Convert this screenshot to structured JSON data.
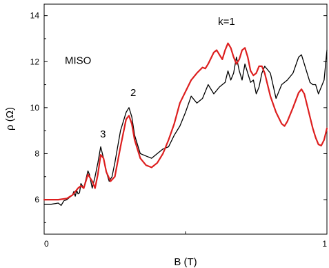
{
  "chart_data": {
    "type": "line",
    "xlabel": "B (T)",
    "ylabel": "ρ (Ω)",
    "xlim": [
      0,
      1
    ],
    "ylim": [
      4.5,
      14.5
    ],
    "x_ticks": [
      {
        "value": 0,
        "label": "0"
      },
      {
        "value": 1,
        "label": "1"
      }
    ],
    "y_ticks": [
      {
        "value": 6,
        "label": "6"
      },
      {
        "value": 8,
        "label": "8"
      },
      {
        "value": 10,
        "label": "10"
      },
      {
        "value": 12,
        "label": "12"
      },
      {
        "value": 14,
        "label": "14"
      }
    ],
    "grid": false,
    "series": [
      {
        "color": "#000000",
        "x": [
          0,
          0.025,
          0.05,
          0.06,
          0.07,
          0.08,
          0.09,
          0.1,
          0.105,
          0.11,
          0.115,
          0.12,
          0.125,
          0.13,
          0.14,
          0.15,
          0.155,
          0.16,
          0.17,
          0.18,
          0.19,
          0.2,
          0.21,
          0.22,
          0.23,
          0.24,
          0.25,
          0.27,
          0.29,
          0.3,
          0.31,
          0.32,
          0.34,
          0.36,
          0.38,
          0.4,
          0.42,
          0.44,
          0.46,
          0.48,
          0.5,
          0.52,
          0.54,
          0.56,
          0.58,
          0.6,
          0.62,
          0.64,
          0.65,
          0.66,
          0.67,
          0.68,
          0.69,
          0.7,
          0.71,
          0.72,
          0.73,
          0.74,
          0.75,
          0.76,
          0.77,
          0.78,
          0.8,
          0.82,
          0.84,
          0.86,
          0.88,
          0.9,
          0.91,
          0.92,
          0.93,
          0.94,
          0.95,
          0.96,
          0.97,
          0.98,
          0.99,
          1.0
        ],
        "y": [
          5.8,
          5.8,
          5.85,
          5.75,
          5.95,
          6.0,
          6.1,
          6.2,
          6.35,
          6.15,
          6.4,
          6.25,
          6.3,
          6.7,
          6.5,
          7.0,
          7.25,
          7.1,
          6.5,
          7.0,
          7.6,
          8.3,
          7.8,
          7.2,
          6.8,
          7.0,
          7.6,
          9.0,
          9.8,
          10.0,
          9.6,
          8.8,
          8.0,
          7.9,
          7.8,
          8.0,
          8.2,
          8.3,
          8.8,
          9.2,
          9.8,
          10.5,
          10.2,
          10.4,
          11.0,
          10.6,
          10.9,
          11.1,
          11.6,
          11.2,
          11.5,
          12.2,
          11.6,
          11.2,
          11.9,
          11.5,
          11.1,
          11.2,
          10.6,
          10.9,
          11.5,
          11.8,
          11.5,
          10.4,
          11.0,
          11.2,
          11.5,
          12.2,
          12.3,
          11.9,
          11.5,
          11.1,
          11.0,
          11.0,
          10.6,
          10.9,
          11.2,
          12.5
        ]
      },
      {
        "color": "#dd1f1f",
        "x": [
          0,
          0.025,
          0.05,
          0.08,
          0.1,
          0.12,
          0.13,
          0.14,
          0.155,
          0.17,
          0.18,
          0.19,
          0.2,
          0.21,
          0.22,
          0.235,
          0.25,
          0.27,
          0.29,
          0.3,
          0.31,
          0.32,
          0.34,
          0.36,
          0.38,
          0.4,
          0.42,
          0.44,
          0.46,
          0.48,
          0.5,
          0.52,
          0.54,
          0.56,
          0.57,
          0.58,
          0.6,
          0.61,
          0.62,
          0.63,
          0.64,
          0.65,
          0.66,
          0.67,
          0.68,
          0.69,
          0.7,
          0.71,
          0.72,
          0.73,
          0.74,
          0.75,
          0.76,
          0.77,
          0.78,
          0.79,
          0.8,
          0.82,
          0.84,
          0.85,
          0.86,
          0.88,
          0.9,
          0.91,
          0.92,
          0.93,
          0.94,
          0.95,
          0.96,
          0.97,
          0.98,
          0.99,
          1.0
        ],
        "y": [
          6.0,
          6.0,
          6.0,
          6.05,
          6.2,
          6.5,
          6.6,
          6.5,
          7.1,
          6.8,
          6.5,
          7.1,
          7.95,
          7.8,
          7.2,
          6.8,
          7.0,
          8.3,
          9.5,
          9.65,
          9.3,
          8.6,
          7.8,
          7.5,
          7.4,
          7.6,
          8.0,
          8.6,
          9.3,
          10.2,
          10.7,
          11.2,
          11.5,
          11.75,
          11.7,
          11.9,
          12.4,
          12.5,
          12.3,
          12.1,
          12.5,
          12.8,
          12.6,
          12.2,
          11.9,
          12.1,
          12.5,
          12.6,
          12.2,
          11.6,
          11.4,
          11.5,
          11.8,
          11.8,
          11.5,
          11.0,
          10.5,
          9.8,
          9.3,
          9.2,
          9.4,
          10.0,
          10.65,
          10.8,
          10.6,
          10.1,
          9.6,
          9.1,
          8.7,
          8.4,
          8.35,
          8.6,
          9.1
        ]
      }
    ],
    "annotations": [
      {
        "text": "MISO",
        "x": 0.12,
        "y": 11.9
      },
      {
        "text": "2",
        "x": 0.315,
        "y": 10.5
      },
      {
        "text": "3",
        "x": 0.208,
        "y": 8.7
      },
      {
        "text": "k=1",
        "x": 0.645,
        "y": 13.6
      }
    ]
  }
}
